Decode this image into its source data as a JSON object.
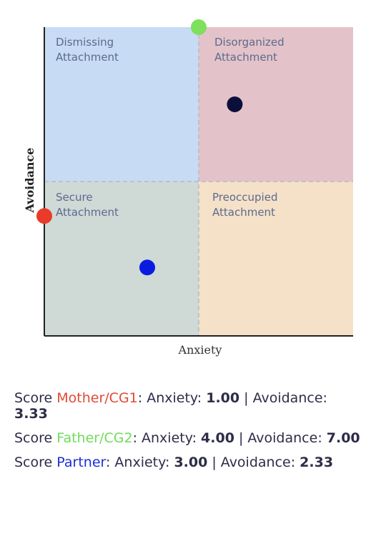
{
  "chart_data": {
    "type": "scatter",
    "xlabel": "Anxiety",
    "ylabel": "Avoidance",
    "xlim": [
      1,
      7
    ],
    "ylim": [
      1,
      7
    ],
    "quadrants": [
      {
        "line1": "Dismissing",
        "line2": "Attachment",
        "color": "#c7dbf5"
      },
      {
        "line1": "Disorganized",
        "line2": "Attachment",
        "color": "#e3c3c9"
      },
      {
        "line1": "Secure",
        "line2": "Attachment",
        "color": "#cfd9d6"
      },
      {
        "line1": "Preoccupied",
        "line2": "Attachment",
        "color": "#f4e1c8"
      }
    ],
    "points": [
      {
        "name": "Mother/CG1",
        "x": 1.0,
        "y": 3.33,
        "color": "#ea3b2a"
      },
      {
        "name": "Father/CG2",
        "x": 4.0,
        "y": 7.0,
        "color": "#7ee05c"
      },
      {
        "name": "Partner",
        "x": 3.0,
        "y": 2.33,
        "color": "#0a1be0"
      },
      {
        "name": "",
        "x": 4.7,
        "y": 5.5,
        "color": "#0c0f3a"
      }
    ]
  },
  "scores": [
    {
      "prefix": "Score ",
      "name": "Mother/CG1",
      "name_color": "#e14a36",
      "anx_label": ": Anxiety: ",
      "anx": "1.00",
      "sep": " | Avoidance: ",
      "avd": "3.33"
    },
    {
      "prefix": "Score ",
      "name": "Father/CG2",
      "name_color": "#6fdc5a",
      "anx_label": ": Anxiety: ",
      "anx": "4.00",
      "sep": " | Avoidance: ",
      "avd": "7.00"
    },
    {
      "prefix": "Score ",
      "name": "Partner",
      "name_color": "#1a2fd6",
      "anx_label": ": Anxiety: ",
      "anx": "3.00",
      "sep": " | Avoidance: ",
      "avd": "2.33"
    }
  ]
}
